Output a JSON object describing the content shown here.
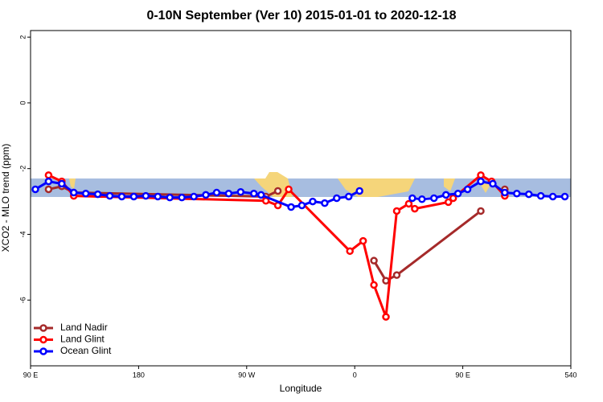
{
  "chart_data": {
    "type": "line",
    "title": "0-10N September (Ver 10)   2015-01-01 to 2020-12-18",
    "x_label": "Longitude",
    "y_label": "XCO2 - MLO trend (ppm)",
    "xlim": [
      90,
      540
    ],
    "ylim": [
      -8.0,
      2.2
    ],
    "xticks": [
      {
        "value": 90,
        "label": "90 E"
      },
      180,
      {
        "value": 270,
        "label": "90 W"
      },
      {
        "value": 360,
        "label": "0"
      },
      {
        "value": 450,
        "label": "90 E"
      },
      540
    ],
    "yticks": [
      -6,
      -4,
      -2,
      0,
      2
    ],
    "series": [
      {
        "name": "Land Nadir",
        "color": "#a52a2a",
        "x": [
          105,
          116,
          126,
          286,
          296,
          366,
          376,
          386,
          395,
          465,
          474,
          485
        ],
        "values": [
          -2.63,
          -2.54,
          -2.73,
          -2.85,
          -2.68,
          null,
          -4.8,
          -5.41,
          -5.24,
          -3.29,
          null,
          -2.63
        ]
      },
      {
        "name": "Land Glint",
        "color": "#ff0000",
        "x": [
          105,
          116,
          126,
          286,
          296,
          305,
          356,
          367,
          376,
          386,
          395,
          405,
          410,
          438,
          442,
          465,
          474,
          485
        ],
        "values": [
          -2.2,
          -2.39,
          -2.83,
          -2.98,
          -3.12,
          -2.63,
          -4.51,
          -4.2,
          -5.54,
          -6.51,
          -3.29,
          -3.07,
          -3.22,
          -3.02,
          -2.9,
          -2.2,
          -2.39,
          -2.83
        ]
      },
      {
        "name": "Ocean Glint",
        "color": "#0000ff",
        "x": [
          94,
          105,
          116,
          126,
          136,
          146,
          156,
          166,
          176,
          186,
          196,
          206,
          216,
          226,
          236,
          245,
          255,
          265,
          276,
          282,
          307,
          316,
          325,
          335,
          345,
          355,
          364,
          386,
          408,
          416,
          426,
          436,
          446,
          454,
          465,
          475,
          485,
          495,
          505,
          515,
          525,
          535
        ],
        "values": [
          -2.63,
          -2.39,
          -2.46,
          -2.73,
          -2.76,
          -2.78,
          -2.83,
          -2.85,
          -2.85,
          -2.83,
          -2.85,
          -2.88,
          -2.88,
          -2.85,
          -2.8,
          -2.73,
          -2.76,
          -2.71,
          -2.76,
          -2.8,
          -3.17,
          -3.12,
          -3.0,
          -3.05,
          -2.9,
          -2.85,
          -2.68,
          null,
          -2.9,
          -2.93,
          -2.9,
          -2.8,
          -2.76,
          -2.63,
          -2.39,
          -2.46,
          -2.73,
          -2.76,
          -2.78,
          -2.83,
          -2.85,
          -2.85
        ]
      }
    ]
  }
}
